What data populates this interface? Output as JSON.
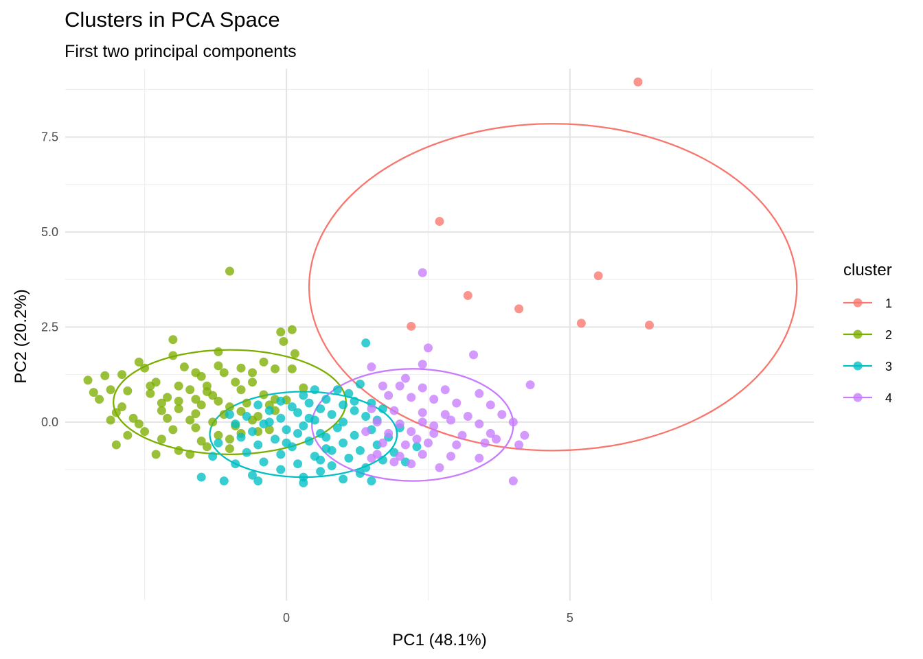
{
  "chart_data": {
    "type": "scatter",
    "title": "Clusters in PCA Space",
    "subtitle": "First two principal components",
    "xlabel": "PC1 (48.1%)",
    "ylabel": "PC2 (20.2%)",
    "xlim": [
      -3.9,
      9.3
    ],
    "ylim": [
      -4.7,
      9.3
    ],
    "x_ticks": [
      0,
      5
    ],
    "y_ticks": [
      0.0,
      2.5,
      5.0,
      7.5
    ],
    "x_tick_labels": [
      "0",
      "5"
    ],
    "y_tick_labels": [
      "0.0",
      "2.5",
      "5.0",
      "7.5"
    ],
    "grid": true,
    "legend": {
      "title": "cluster",
      "position": "right"
    },
    "series": [
      {
        "name": "1",
        "color": "#F8766D",
        "points": [
          [
            6.2,
            8.95
          ],
          [
            2.7,
            5.28
          ],
          [
            5.5,
            3.85
          ],
          [
            3.2,
            3.33
          ],
          [
            4.1,
            2.98
          ],
          [
            5.2,
            2.6
          ],
          [
            6.4,
            2.55
          ],
          [
            2.2,
            2.52
          ]
        ],
        "ellipse": {
          "cx": 4.7,
          "cy": 3.55,
          "rx": 4.3,
          "ry": 4.3
        }
      },
      {
        "name": "2",
        "color": "#7CAE00",
        "points": [
          [
            -1.0,
            3.97
          ],
          [
            -0.1,
            2.37
          ],
          [
            0.1,
            2.43
          ],
          [
            -0.05,
            2.12
          ],
          [
            0.15,
            1.8
          ],
          [
            -2.0,
            2.17
          ],
          [
            -2.0,
            1.75
          ],
          [
            -2.6,
            1.58
          ],
          [
            -1.2,
            1.85
          ],
          [
            -2.5,
            1.42
          ],
          [
            -1.8,
            1.45
          ],
          [
            -1.6,
            1.3
          ],
          [
            -1.2,
            1.48
          ],
          [
            -0.8,
            1.42
          ],
          [
            -0.4,
            1.58
          ],
          [
            -0.2,
            1.4
          ],
          [
            0.1,
            1.4
          ],
          [
            -3.2,
            1.22
          ],
          [
            -2.9,
            1.25
          ],
          [
            -2.3,
            1.05
          ],
          [
            -1.5,
            1.2
          ],
          [
            -1.1,
            1.3
          ],
          [
            -0.6,
            1.3
          ],
          [
            -1.9,
            0.95
          ],
          [
            -1.4,
            0.95
          ],
          [
            -0.9,
            1.05
          ],
          [
            -0.6,
            1.05
          ],
          [
            -3.5,
            1.1
          ],
          [
            -2.8,
            0.82
          ],
          [
            -2.4,
            0.75
          ],
          [
            -1.7,
            0.85
          ],
          [
            -1.3,
            0.7
          ],
          [
            -0.8,
            0.85
          ],
          [
            -3.4,
            0.78
          ],
          [
            -3.1,
            0.85
          ],
          [
            -2.1,
            0.65
          ],
          [
            -1.6,
            0.6
          ],
          [
            -1.2,
            0.55
          ],
          [
            -0.4,
            0.72
          ],
          [
            -0.2,
            0.6
          ],
          [
            0.3,
            0.9
          ],
          [
            -3.3,
            0.6
          ],
          [
            -2.9,
            0.4
          ],
          [
            -2.2,
            0.5
          ],
          [
            -1.9,
            0.55
          ],
          [
            -1.5,
            0.45
          ],
          [
            -1.0,
            0.4
          ],
          [
            -0.7,
            0.5
          ],
          [
            -0.3,
            0.45
          ],
          [
            0.0,
            0.58
          ],
          [
            -3.0,
            0.25
          ],
          [
            -2.7,
            0.1
          ],
          [
            -2.2,
            0.3
          ],
          [
            -1.9,
            0.35
          ],
          [
            -1.6,
            0.22
          ],
          [
            -1.1,
            0.2
          ],
          [
            -0.8,
            0.28
          ],
          [
            -0.5,
            0.15
          ],
          [
            -3.1,
            0.05
          ],
          [
            -2.6,
            -0.05
          ],
          [
            -2.1,
            0.1
          ],
          [
            -1.7,
            0.05
          ],
          [
            -1.3,
            0.0
          ],
          [
            -0.9,
            -0.1
          ],
          [
            -0.6,
            0.05
          ],
          [
            -2.5,
            -0.25
          ],
          [
            -2.0,
            -0.2
          ],
          [
            -1.6,
            -0.15
          ],
          [
            -1.2,
            -0.35
          ],
          [
            -0.8,
            -0.3
          ],
          [
            -2.8,
            -0.35
          ],
          [
            -2.2,
            -0.45
          ],
          [
            -1.5,
            -0.5
          ],
          [
            -1.0,
            -0.45
          ],
          [
            -0.5,
            -0.25
          ],
          [
            -3.0,
            -0.6
          ],
          [
            -1.9,
            -0.75
          ],
          [
            -1.4,
            -0.65
          ],
          [
            -1.0,
            -0.7
          ],
          [
            -2.3,
            -0.85
          ],
          [
            -1.7,
            -0.85
          ],
          [
            -0.2,
            0.3
          ],
          [
            -0.3,
            -0.2
          ],
          [
            -1.4,
            0.8
          ],
          [
            -2.4,
            0.95
          ]
        ]
      },
      {
        "name": "3",
        "color": "#00BFC4",
        "points": [
          [
            1.4,
            2.08
          ],
          [
            1.3,
            1.0
          ],
          [
            0.9,
            0.85
          ],
          [
            0.5,
            0.85
          ],
          [
            1.1,
            0.75
          ],
          [
            0.3,
            0.7
          ],
          [
            0.7,
            0.6
          ],
          [
            -0.1,
            0.55
          ],
          [
            0.4,
            0.5
          ],
          [
            1.0,
            0.45
          ],
          [
            1.5,
            0.5
          ],
          [
            -0.5,
            0.45
          ],
          [
            0.1,
            0.4
          ],
          [
            0.6,
            0.35
          ],
          [
            1.2,
            0.3
          ],
          [
            1.7,
            0.35
          ],
          [
            -0.3,
            0.3
          ],
          [
            0.2,
            0.25
          ],
          [
            0.8,
            0.2
          ],
          [
            1.4,
            0.15
          ],
          [
            -0.7,
            0.15
          ],
          [
            -0.1,
            0.1
          ],
          [
            0.5,
            0.05
          ],
          [
            1.0,
            0.0
          ],
          [
            1.6,
            0.05
          ],
          [
            -0.9,
            -0.05
          ],
          [
            -0.4,
            -0.05
          ],
          [
            0.3,
            -0.1
          ],
          [
            0.9,
            -0.15
          ],
          [
            1.5,
            -0.2
          ],
          [
            2.0,
            -0.15
          ],
          [
            -0.6,
            -0.25
          ],
          [
            0.0,
            -0.2
          ],
          [
            0.6,
            -0.3
          ],
          [
            1.2,
            -0.35
          ],
          [
            1.8,
            -0.4
          ],
          [
            -0.8,
            -0.4
          ],
          [
            -0.2,
            -0.45
          ],
          [
            0.4,
            -0.5
          ],
          [
            1.0,
            -0.55
          ],
          [
            1.6,
            -0.6
          ],
          [
            -0.5,
            -0.6
          ],
          [
            0.1,
            -0.65
          ],
          [
            0.7,
            -0.7
          ],
          [
            1.3,
            -0.75
          ],
          [
            1.9,
            -0.8
          ],
          [
            -0.7,
            -0.8
          ],
          [
            -0.1,
            -0.85
          ],
          [
            0.5,
            -0.9
          ],
          [
            1.1,
            -0.95
          ],
          [
            1.7,
            -1.0
          ],
          [
            -0.4,
            -1.05
          ],
          [
            0.2,
            -1.1
          ],
          [
            0.8,
            -1.15
          ],
          [
            1.4,
            -1.2
          ],
          [
            -0.9,
            -1.1
          ],
          [
            -0.1,
            -1.25
          ],
          [
            0.6,
            -1.3
          ],
          [
            1.3,
            -1.35
          ],
          [
            -0.6,
            -1.4
          ],
          [
            0.3,
            -1.45
          ],
          [
            1.0,
            -1.5
          ],
          [
            -1.5,
            -1.45
          ],
          [
            -1.1,
            -1.55
          ],
          [
            -0.5,
            -1.55
          ],
          [
            0.3,
            -1.6
          ],
          [
            1.5,
            -1.55
          ],
          [
            2.3,
            -0.65
          ],
          [
            2.1,
            -1.05
          ],
          [
            -1.3,
            -0.9
          ],
          [
            -1.2,
            -0.55
          ],
          [
            -1.0,
            0.2
          ],
          [
            0.7,
            -0.4
          ],
          [
            0.4,
            0.1
          ],
          [
            0.0,
            -0.55
          ],
          [
            0.8,
            -0.75
          ],
          [
            1.2,
            0.55
          ],
          [
            0.2,
            -0.3
          ],
          [
            -0.3,
            0.0
          ],
          [
            0.6,
            -1.0
          ]
        ]
      },
      {
        "name": "4",
        "color": "#C77CFF",
        "points": [
          [
            2.4,
            3.93
          ],
          [
            1.5,
            1.45
          ],
          [
            2.5,
            1.95
          ],
          [
            3.3,
            1.77
          ],
          [
            2.4,
            1.52
          ],
          [
            4.3,
            0.98
          ],
          [
            2.1,
            1.15
          ],
          [
            1.7,
            0.95
          ],
          [
            2.0,
            0.95
          ],
          [
            2.4,
            0.9
          ],
          [
            2.8,
            0.85
          ],
          [
            3.4,
            0.75
          ],
          [
            1.8,
            0.7
          ],
          [
            2.2,
            0.65
          ],
          [
            2.6,
            0.6
          ],
          [
            3.0,
            0.5
          ],
          [
            3.6,
            0.45
          ],
          [
            1.5,
            0.35
          ],
          [
            1.9,
            0.3
          ],
          [
            2.4,
            0.25
          ],
          [
            2.8,
            0.2
          ],
          [
            3.2,
            0.15
          ],
          [
            3.8,
            0.2
          ],
          [
            1.6,
            0.0
          ],
          [
            2.0,
            -0.05
          ],
          [
            2.4,
            0.0
          ],
          [
            2.9,
            0.05
          ],
          [
            3.4,
            -0.05
          ],
          [
            4.0,
            0.0
          ],
          [
            1.4,
            -0.25
          ],
          [
            1.8,
            -0.3
          ],
          [
            2.2,
            -0.25
          ],
          [
            2.6,
            -0.3
          ],
          [
            3.1,
            -0.35
          ],
          [
            3.6,
            -0.3
          ],
          [
            4.2,
            -0.35
          ],
          [
            1.7,
            -0.55
          ],
          [
            2.1,
            -0.6
          ],
          [
            2.5,
            -0.55
          ],
          [
            3.0,
            -0.6
          ],
          [
            3.5,
            -0.55
          ],
          [
            4.1,
            -0.6
          ],
          [
            1.6,
            -0.85
          ],
          [
            2.0,
            -0.9
          ],
          [
            2.4,
            -0.85
          ],
          [
            2.9,
            -0.9
          ],
          [
            3.4,
            -0.95
          ],
          [
            2.2,
            -1.1
          ],
          [
            2.7,
            -1.2
          ],
          [
            1.9,
            -1.05
          ],
          [
            4.0,
            -1.55
          ],
          [
            1.5,
            -0.95
          ],
          [
            2.6,
            -0.1
          ],
          [
            3.7,
            -0.45
          ],
          [
            2.3,
            -0.45
          ]
        ]
      }
    ]
  }
}
